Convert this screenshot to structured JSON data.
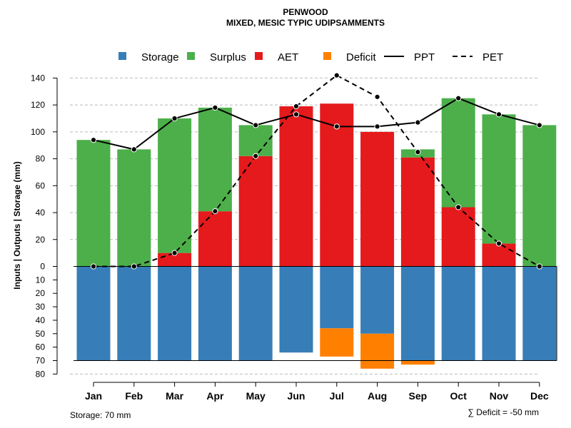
{
  "title": "PENWOOD",
  "subtitle": "MIXED, MESIC TYPIC UDIPSAMMENTS",
  "colors": {
    "storage": "#377eb8",
    "surplus": "#4daf4a",
    "aet": "#e41a1c",
    "deficit": "#ff7f00",
    "line": "#000000",
    "grid": "#bbbbbb"
  },
  "chart_data": {
    "type": "bar",
    "categories": [
      "Jan",
      "Feb",
      "Mar",
      "Apr",
      "May",
      "Jun",
      "Jul",
      "Aug",
      "Sep",
      "Oct",
      "Nov",
      "Dec"
    ],
    "series": [
      {
        "name": "AET",
        "values": [
          0,
          0,
          10,
          41,
          82,
          119,
          121,
          100,
          81,
          44,
          17,
          0
        ]
      },
      {
        "name": "Surplus",
        "values": [
          94,
          87,
          100,
          77,
          23,
          0,
          0,
          0,
          6,
          81,
          96,
          105
        ]
      },
      {
        "name": "Storage",
        "values": [
          70,
          70,
          70,
          70,
          70,
          64,
          46,
          50,
          70,
          70,
          70,
          70
        ]
      },
      {
        "name": "Deficit",
        "values": [
          0,
          0,
          0,
          0,
          0,
          0,
          21,
          26,
          3,
          0,
          0,
          0
        ]
      },
      {
        "name": "PPT",
        "values": [
          94,
          87,
          110,
          118,
          105,
          113,
          104,
          104,
          107,
          125,
          113,
          105
        ]
      },
      {
        "name": "PET",
        "values": [
          0,
          0,
          10,
          41,
          82,
          119,
          142,
          126,
          85,
          44,
          17,
          0
        ]
      }
    ],
    "ylabel": "Inputs | Outputs | Storage    (mm)",
    "upper_ticks": [
      0,
      20,
      40,
      60,
      80,
      100,
      120,
      140
    ],
    "lower_ticks": [
      10,
      20,
      30,
      40,
      50,
      60,
      70,
      80
    ],
    "ylim": [
      -80,
      145
    ],
    "storage_capacity": 70,
    "grid": true
  },
  "legend": [
    "Storage",
    "Surplus",
    "AET",
    "Deficit",
    "PPT",
    "PET"
  ],
  "footer": {
    "storage_note": "Storage: 70 mm",
    "deficit_note": "∑ Deficit = -50 mm"
  }
}
